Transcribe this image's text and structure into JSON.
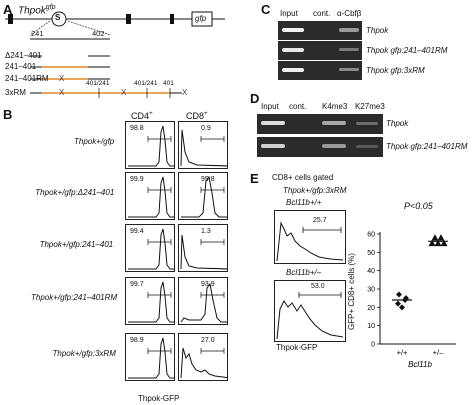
{
  "panelA": {
    "letter": "A",
    "title_main": "Thpok",
    "title_sup": "gfp",
    "gene_label": "gfp",
    "site_label": "S",
    "pos1": "241",
    "pos2": "402",
    "constructs": [
      {
        "name": "Δ241–401"
      },
      {
        "name": "241–401"
      },
      {
        "name": "241–401RM",
        "marks": [
          "X"
        ]
      },
      {
        "name": "3xRM",
        "marks": [
          "X",
          "X",
          "X"
        ],
        "labels": [
          "401/241",
          "401/241",
          "401"
        ]
      }
    ]
  },
  "panelB": {
    "letter": "B",
    "col_cd4": "CD4",
    "col_cd8": "CD8",
    "col_sup": "+",
    "xaxis": "Thpok-GFP",
    "rows": [
      {
        "genotype": "Thpok+/gfp",
        "cd4": "98.8",
        "cd8": "0.9"
      },
      {
        "genotype": "Thpok+/gfp:Δ241–401",
        "cd4": "99.9",
        "cd8": "99.8"
      },
      {
        "genotype": "Thpok+/gfp:241–401",
        "cd4": "99.4",
        "cd8": "1.3"
      },
      {
        "genotype": "Thpok+/gfp:241–401RM",
        "cd4": "99.7",
        "cd8": "93.9"
      },
      {
        "genotype": "Thpok+/gfp:3xRM",
        "cd4": "98.9",
        "cd8": "27.0"
      }
    ]
  },
  "panelC": {
    "letter": "C",
    "lanes": [
      "Input",
      "cont.",
      "α-Cbfβ"
    ],
    "rows": [
      "Thpok",
      "Thpok gfp:241–401RM",
      "Thpok gfp:3xRM"
    ]
  },
  "panelD": {
    "letter": "D",
    "lanes": [
      "Input",
      "cont.",
      "K4me3",
      "K27me3"
    ],
    "rows": [
      "Thpok",
      "Thpok gfp:241–401RM"
    ]
  },
  "panelE": {
    "letter": "E",
    "gate": "CD8+ cells gated",
    "genotype": "Thpok+/gfp:3xRM",
    "wt_label": "Bcl11b+/+",
    "het_label": "Bcl11b+/–",
    "wt_value": "25.7",
    "het_value": "53.0",
    "xaxis": "Thpok-GFP",
    "pvalue": "P<0.05",
    "ylabel": "GFP+ CD8+ cells (%)",
    "yticks": [
      "0",
      "10",
      "20",
      "30",
      "40",
      "50",
      "60"
    ],
    "xgroups": [
      "+/+",
      "+/–"
    ],
    "xtitle": "Bcl11b"
  },
  "chart_data": {
    "type": "scatter",
    "title": "",
    "xlabel": "Bcl11b",
    "ylabel": "GFP+ CD8+ cells (%)",
    "ylim": [
      0,
      60
    ],
    "categories": [
      "+/+",
      "+/–"
    ],
    "series": [
      {
        "name": "+/+",
        "values": [
          27,
          24,
          22,
          20,
          25
        ],
        "mean": 24
      },
      {
        "name": "+/–",
        "values": [
          58,
          58,
          55,
          55,
          55
        ],
        "mean": 56
      }
    ]
  }
}
